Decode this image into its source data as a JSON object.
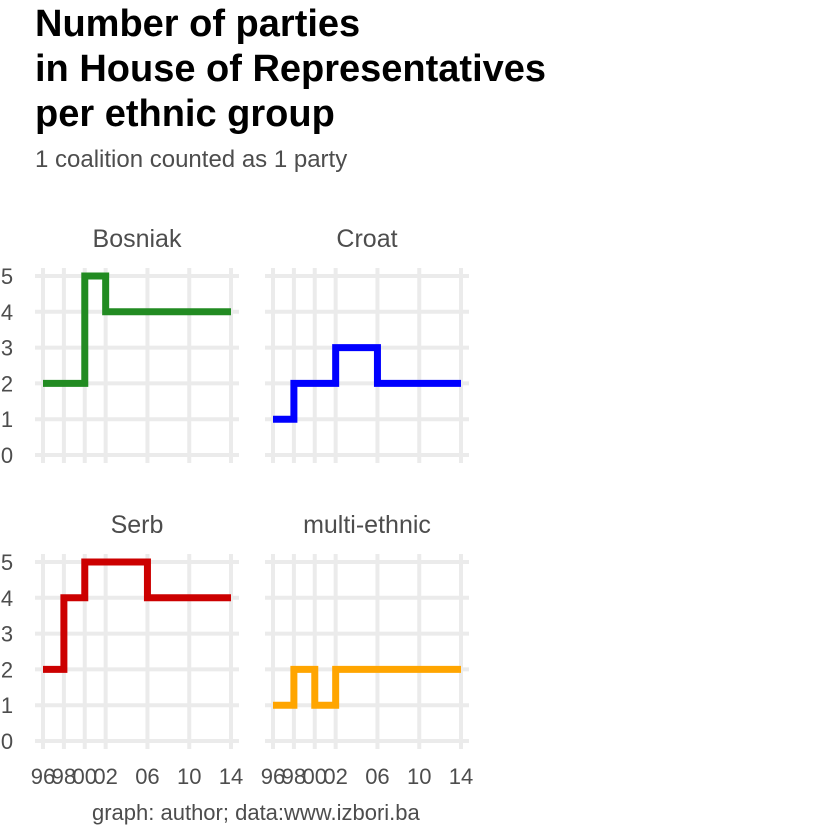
{
  "chart_data": {
    "type": "line",
    "title_lines": [
      "Number of parties",
      "in House of Representatives",
      "per ethnic group"
    ],
    "subtitle": "1 coalition counted as 1 party",
    "caption": "graph: author; data:www.izbori.ba",
    "step": true,
    "x": [
      1996,
      1998,
      2000,
      2002,
      2006,
      2010,
      2014
    ],
    "x_tick_values": [
      1996,
      1998,
      2000,
      2002,
      2006,
      2010,
      2014
    ],
    "x_tick_labels": [
      "96",
      "98",
      "00",
      "02",
      "06",
      "10",
      "14"
    ],
    "y_ticks": [
      0,
      1,
      2,
      3,
      4,
      5
    ],
    "xlim": [
      1996,
      2014
    ],
    "ylim": [
      0,
      5
    ],
    "grid": true,
    "panels": [
      {
        "name": "Bosniak",
        "color": "#228B22",
        "values": [
          2,
          2,
          5,
          4,
          4,
          4,
          4
        ]
      },
      {
        "name": "Croat",
        "color": "#0000FF",
        "values": [
          1,
          2,
          2,
          3,
          2,
          2,
          2
        ]
      },
      {
        "name": "Serb",
        "color": "#CC0000",
        "values": [
          2,
          4,
          5,
          5,
          4,
          4,
          4
        ]
      },
      {
        "name": "multi-ethnic",
        "color": "#FFA500",
        "values": [
          1,
          2,
          1,
          2,
          2,
          2,
          2
        ]
      }
    ]
  }
}
